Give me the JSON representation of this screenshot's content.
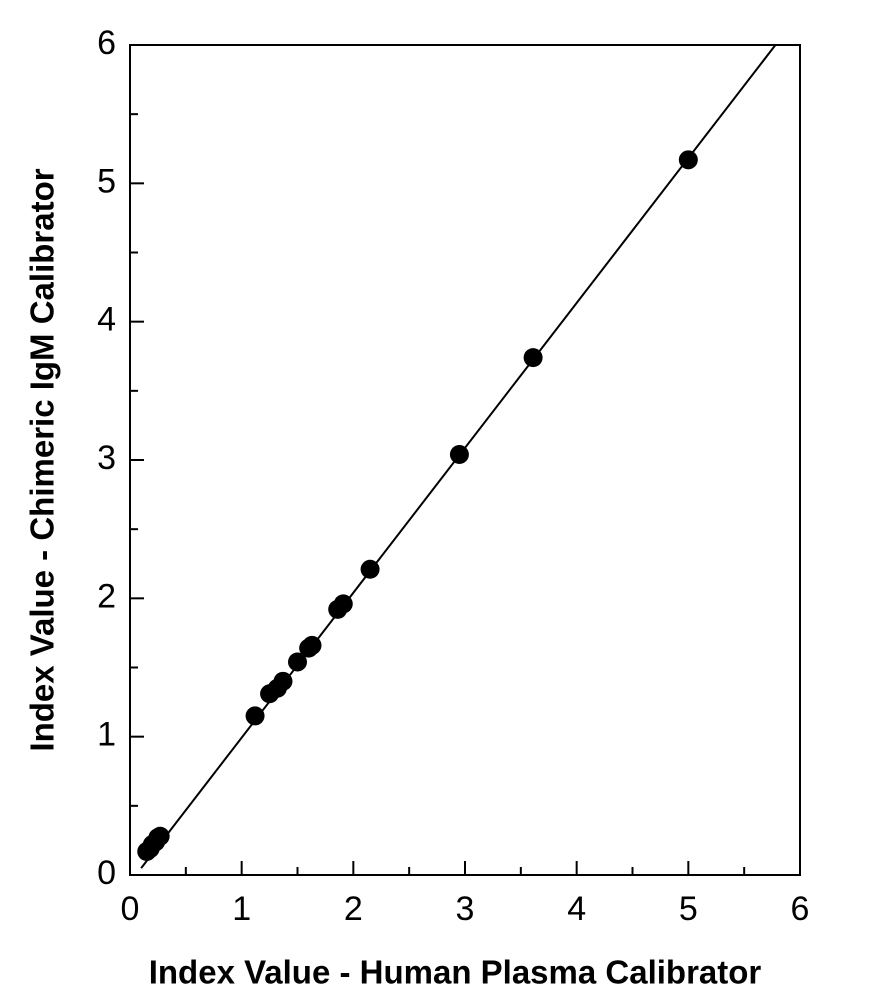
{
  "chart_data": {
    "type": "scatter",
    "xlabel": "Index Value - Human Plasma Calibrator",
    "ylabel": "Index Value - Chimeric IgM Calibrator",
    "x": [
      0.15,
      0.18,
      0.2,
      0.23,
      0.25,
      0.27,
      1.12,
      1.25,
      1.32,
      1.37,
      1.5,
      1.6,
      1.63,
      1.86,
      1.91,
      2.15,
      2.95,
      3.61,
      5.0
    ],
    "values": [
      0.17,
      0.19,
      0.22,
      0.24,
      0.27,
      0.28,
      1.15,
      1.31,
      1.35,
      1.4,
      1.54,
      1.64,
      1.66,
      1.92,
      1.96,
      2.21,
      3.04,
      3.74,
      5.17
    ],
    "color": "#000000",
    "fit_line": {
      "x": [
        0.1,
        5.78
      ],
      "y": [
        0.05,
        6
      ]
    },
    "xlim": [
      0,
      6
    ],
    "ylim": [
      0,
      6
    ],
    "xticks": [
      0,
      1,
      2,
      3,
      4,
      5,
      6
    ],
    "yticks": [
      0,
      1,
      2,
      3,
      4,
      5,
      6
    ],
    "xminorticks": [
      0.5,
      1.5,
      2.5,
      3.5,
      4.5,
      5.5
    ],
    "yminorticks": [
      0.5,
      1.5,
      2.5,
      3.5,
      4.5,
      5.5
    ]
  }
}
